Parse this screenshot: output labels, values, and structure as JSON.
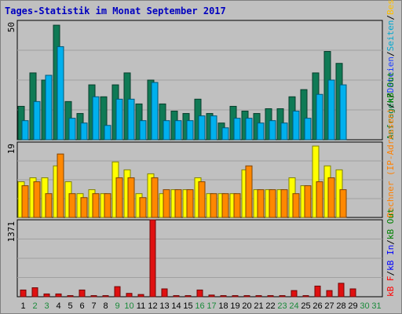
{
  "chart_data": {
    "type": "bar",
    "title": "Tages-Statistik im Monat September 2017",
    "categories": [
      "1",
      "2",
      "3",
      "4",
      "5",
      "6",
      "7",
      "8",
      "9",
      "10",
      "11",
      "12",
      "13",
      "14",
      "15",
      "16",
      "17",
      "18",
      "19",
      "20",
      "21",
      "22",
      "23",
      "24",
      "25",
      "26",
      "27",
      "28",
      "29",
      "30",
      "31"
    ],
    "weekend_days": [
      2,
      3,
      9,
      10,
      16,
      17,
      23,
      24,
      30,
      31
    ],
    "panels": [
      {
        "ymax": 50,
        "ylabel_parts": [
          {
            "text": "Anfragen",
            "color": "#008040"
          },
          {
            "text": "/",
            "color": "#000000"
          },
          {
            "text": "Dateien",
            "color": "#2040ff"
          },
          {
            "text": "/",
            "color": "#000000"
          },
          {
            "text": "Seiten",
            "color": "#00a8d0"
          },
          {
            "text": "/",
            "color": "#000000"
          },
          {
            "text": "Besuche",
            "color": "#ffbf00"
          }
        ],
        "series": [
          {
            "name": "Anfragen",
            "color": "#0f7a55",
            "values": [
              14,
              28,
              25,
              48,
              16,
              11,
              23,
              18,
              23,
              28,
              15,
              25,
              15,
              12,
              11,
              17,
              11,
              7,
              14,
              12,
              11,
              13,
              13,
              18,
              21,
              28,
              37,
              32,
              0,
              0,
              0
            ]
          },
          {
            "name": "Seiten",
            "color": "#00b0ee",
            "values": [
              8,
              16,
              27,
              39,
              9,
              7,
              18,
              6,
              17,
              17,
              8,
              24,
              8,
              8,
              8,
              10,
              10,
              5,
              9,
              9,
              7,
              8,
              7,
              12,
              9,
              19,
              25,
              23,
              0,
              0,
              0
            ]
          }
        ]
      },
      {
        "ymax": 19,
        "ylabel_parts": [
          {
            "text": "Rechner (IP-Adressen)",
            "color": "#ff8000"
          },
          {
            "text": "/",
            "color": "#000000"
          },
          {
            "text": "kB Out",
            "color": "#008000"
          }
        ],
        "series": [
          {
            "name": "Besuche",
            "color": "#ffff00",
            "values": [
              9,
              10,
              10,
              13,
              9,
              6,
              7,
              6,
              14,
              12,
              6,
              11,
              6,
              7,
              7,
              10,
              6,
              6,
              6,
              12,
              7,
              7,
              7,
              10,
              8,
              18,
              13,
              12,
              0,
              0,
              0
            ]
          },
          {
            "name": "Rechner",
            "color": "#ff8800",
            "values": [
              8,
              9,
              6,
              16,
              6,
              5,
              6,
              6,
              10,
              10,
              5,
              10,
              7,
              7,
              7,
              9,
              6,
              6,
              6,
              13,
              7,
              7,
              7,
              6,
              8,
              9,
              10,
              7,
              0,
              0,
              0
            ]
          }
        ]
      },
      {
        "ymax": 1371,
        "ylabel_parts": [
          {
            "text": "kB F",
            "color": "#ff0000"
          },
          {
            "text": "/",
            "color": "#000000"
          },
          {
            "text": "kB In",
            "color": "#0000ff"
          },
          {
            "text": "/",
            "color": "#000000"
          },
          {
            "text": "kB Out",
            "color": "#008000"
          }
        ],
        "series": [
          {
            "name": "kB F",
            "color": "#e01010",
            "values": [
              120,
              160,
              50,
              50,
              20,
              120,
              20,
              20,
              180,
              60,
              40,
              1371,
              140,
              20,
              20,
              120,
              30,
              20,
              20,
              20,
              20,
              20,
              20,
              110,
              20,
              190,
              110,
              240,
              140,
              0,
              0
            ]
          }
        ]
      }
    ]
  }
}
